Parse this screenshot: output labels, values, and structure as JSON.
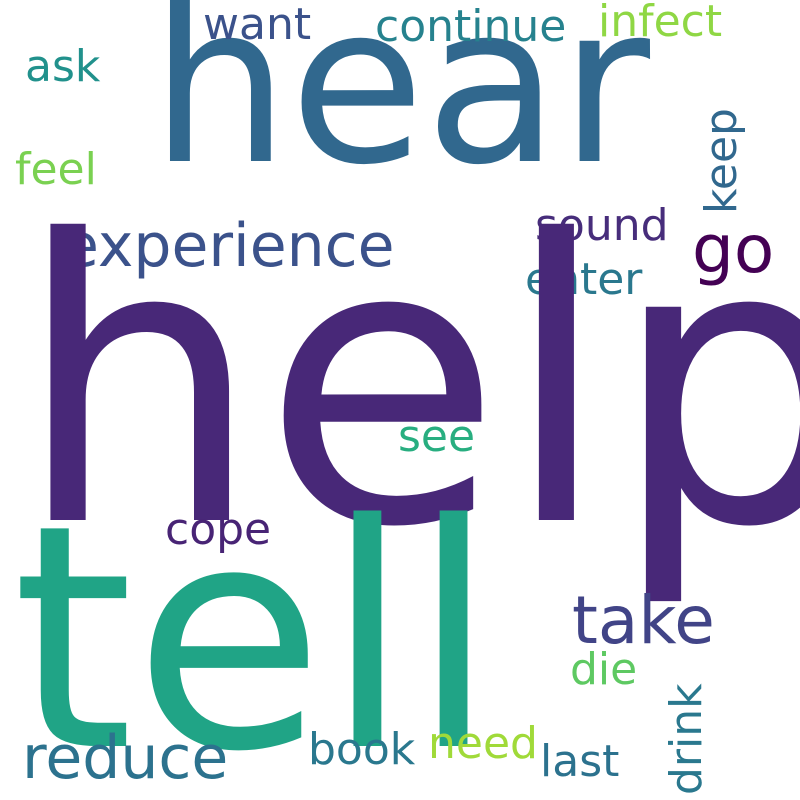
{
  "words": {
    "help": {
      "text": "help",
      "color": "#482878"
    },
    "hear": {
      "text": "hear",
      "color": "#31688e"
    },
    "tell": {
      "text": "tell",
      "color": "#20a486"
    },
    "experience": {
      "text": "experience",
      "color": "#3b528b"
    },
    "take": {
      "text": "take",
      "color": "#414487"
    },
    "reduce": {
      "text": "reduce",
      "color": "#2c728e"
    },
    "go": {
      "text": "go",
      "color": "#440154"
    },
    "continue": {
      "text": "continue",
      "color": "#26828e"
    },
    "infect": {
      "text": "infect",
      "color": "#8fd744"
    },
    "want": {
      "text": "want",
      "color": "#3b528b"
    },
    "ask": {
      "text": "ask",
      "color": "#21918c"
    },
    "feel": {
      "text": "feel",
      "color": "#7ad151"
    },
    "sound": {
      "text": "sound",
      "color": "#472d7b"
    },
    "enter": {
      "text": "enter",
      "color": "#2a788e"
    },
    "keep": {
      "text": "keep",
      "color": "#31688e"
    },
    "see": {
      "text": "see",
      "color": "#28ae80"
    },
    "cope": {
      "text": "cope",
      "color": "#482475"
    },
    "die": {
      "text": "die",
      "color": "#5ec962"
    },
    "drink": {
      "text": "drink",
      "color": "#2a788e"
    },
    "book": {
      "text": "book",
      "color": "#2a788e"
    },
    "need": {
      "text": "need",
      "color": "#a0da39"
    },
    "last": {
      "text": "last",
      "color": "#2c728e"
    }
  }
}
